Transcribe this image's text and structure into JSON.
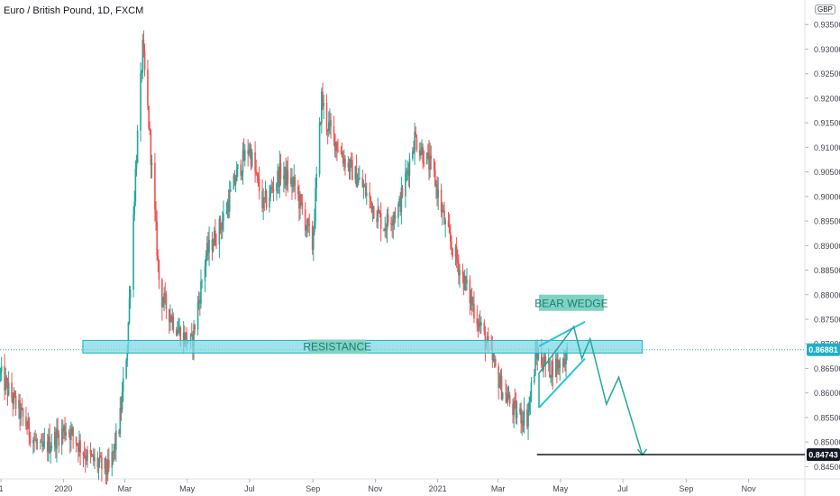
{
  "title": "Euro / British Pound, 1D, FXCM",
  "currency": "GBP",
  "colors": {
    "up": "#26a69a",
    "down": "#ef5350",
    "zone_fill": "#7fd8e6",
    "zone_stroke": "#1fb0c7",
    "wedge": "#26c6da",
    "projection": "#26a69a",
    "annotation_bg": "#7fd3c4",
    "annotation_text": "#1c7d6e",
    "price_tag": "#131722"
  },
  "chart_data": {
    "type": "candlestick",
    "title": "Euro / British Pound, 1D, FXCM",
    "ylim": [
      0.8425,
      0.94
    ],
    "y_ticks": [
      "0.93500",
      "0.93000",
      "0.92500",
      "0.92000",
      "0.91500",
      "0.91000",
      "0.90500",
      "0.90000",
      "0.89500",
      "0.89000",
      "0.88500",
      "0.88000",
      "0.87500",
      "0.87000",
      "0.86500",
      "0.86000",
      "0.85500",
      "0.85000",
      "0.84500"
    ],
    "x_ticks": [
      {
        "label": "1",
        "date": "2019-11-01"
      },
      {
        "label": "2020",
        "date": "2020-01-01"
      },
      {
        "label": "Mar",
        "date": "2020-03-01"
      },
      {
        "label": "May",
        "date": "2020-05-01"
      },
      {
        "label": "Jul",
        "date": "2020-07-01"
      },
      {
        "label": "Sep",
        "date": "2020-09-01"
      },
      {
        "label": "Nov",
        "date": "2020-11-01"
      },
      {
        "label": "2021",
        "date": "2021-01-01"
      },
      {
        "label": "Mar",
        "date": "2021-03-01"
      },
      {
        "label": "May",
        "date": "2021-05-01"
      },
      {
        "label": "Jul",
        "date": "2021-07-01"
      },
      {
        "label": "Sep",
        "date": "2021-09-01"
      },
      {
        "label": "Nov",
        "date": "2021-11-01"
      }
    ],
    "x_range": [
      "2019-10-31",
      "2021-12-26"
    ],
    "price_path": [
      {
        "date": "2019-10-31",
        "price": 0.864
      },
      {
        "date": "2019-11-20",
        "price": 0.856
      },
      {
        "date": "2019-12-10",
        "price": 0.848
      },
      {
        "date": "2020-01-05",
        "price": 0.853
      },
      {
        "date": "2020-01-25",
        "price": 0.847
      },
      {
        "date": "2020-02-15",
        "price": 0.844
      },
      {
        "date": "2020-02-25",
        "price": 0.853
      },
      {
        "date": "2020-03-04",
        "price": 0.87
      },
      {
        "date": "2020-03-12",
        "price": 0.905
      },
      {
        "date": "2020-03-19",
        "price": 0.93
      },
      {
        "date": "2020-03-25",
        "price": 0.915
      },
      {
        "date": "2020-04-05",
        "price": 0.88
      },
      {
        "date": "2020-04-25",
        "price": 0.872
      },
      {
        "date": "2020-05-06",
        "price": 0.87
      },
      {
        "date": "2020-05-20",
        "price": 0.888
      },
      {
        "date": "2020-06-05",
        "price": 0.895
      },
      {
        "date": "2020-06-20",
        "price": 0.905
      },
      {
        "date": "2020-07-01",
        "price": 0.91
      },
      {
        "date": "2020-07-15",
        "price": 0.898
      },
      {
        "date": "2020-08-01",
        "price": 0.905
      },
      {
        "date": "2020-08-15",
        "price": 0.902
      },
      {
        "date": "2020-09-01",
        "price": 0.89
      },
      {
        "date": "2020-09-10",
        "price": 0.92
      },
      {
        "date": "2020-09-15",
        "price": 0.915
      },
      {
        "date": "2020-10-01",
        "price": 0.908
      },
      {
        "date": "2020-10-20",
        "price": 0.902
      },
      {
        "date": "2020-11-10",
        "price": 0.894
      },
      {
        "date": "2020-11-25",
        "price": 0.898
      },
      {
        "date": "2020-12-10",
        "price": 0.912
      },
      {
        "date": "2020-12-28",
        "price": 0.905
      },
      {
        "date": "2021-01-10",
        "price": 0.893
      },
      {
        "date": "2021-02-01",
        "price": 0.88
      },
      {
        "date": "2021-02-20",
        "price": 0.869
      },
      {
        "date": "2021-03-05",
        "price": 0.861
      },
      {
        "date": "2021-03-18",
        "price": 0.856
      },
      {
        "date": "2021-03-30",
        "price": 0.855
      },
      {
        "date": "2021-04-08",
        "price": 0.868
      },
      {
        "date": "2021-04-20",
        "price": 0.865
      },
      {
        "date": "2021-05-01",
        "price": 0.866
      },
      {
        "date": "2021-05-08",
        "price": 0.868
      }
    ],
    "current_price": "0.86881",
    "support_price": "0.84743",
    "resistance_zone": {
      "low": 0.8681,
      "high": 0.8707,
      "from": "2020-01-20",
      "to": "2021-07-20",
      "label": "RESISTANCE"
    },
    "wedge": {
      "label": "BEAR WEDGE",
      "upper": [
        {
          "date": "2021-04-10",
          "price": 0.8695
        },
        {
          "date": "2021-05-25",
          "price": 0.8745
        }
      ],
      "lower": [
        {
          "date": "2021-04-10",
          "price": 0.857
        },
        {
          "date": "2021-05-25",
          "price": 0.867
        }
      ]
    },
    "projection": [
      {
        "date": "2021-04-10",
        "price": 0.857
      },
      {
        "date": "2021-04-10",
        "price": 0.864
      },
      {
        "date": "2021-05-14",
        "price": 0.8735
      },
      {
        "date": "2021-05-22",
        "price": 0.867
      },
      {
        "date": "2021-05-30",
        "price": 0.871
      },
      {
        "date": "2021-06-15",
        "price": 0.8577
      },
      {
        "date": "2021-06-27",
        "price": 0.8632
      },
      {
        "date": "2021-07-20",
        "price": 0.8474
      }
    ],
    "support_line": {
      "price": 0.84743,
      "from": "2021-04-08"
    }
  }
}
